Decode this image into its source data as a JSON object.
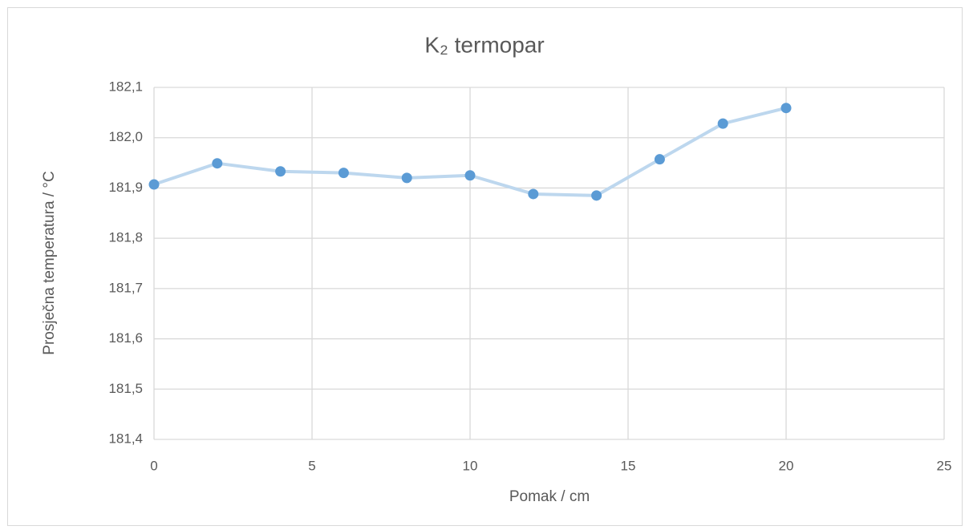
{
  "chart_data": {
    "type": "line",
    "title": "K₂ termopar",
    "x_label": "Pomak / cm",
    "y_label": "Prosječna temperatura / °C",
    "x": [
      0,
      2,
      4,
      6,
      8,
      10,
      12,
      14,
      16,
      18,
      20
    ],
    "series": [
      {
        "color": "#5b9bd5",
        "line_color": "#bdd7ee",
        "values": [
          181.907,
          181.949,
          181.933,
          181.93,
          181.92,
          181.925,
          181.888,
          181.885,
          181.957,
          182.028,
          182.059
        ]
      }
    ],
    "xlim": [
      0,
      25
    ],
    "xticks": [
      0,
      5,
      10,
      15,
      20,
      25
    ],
    "ylim": [
      181.4,
      182.1
    ],
    "yticks": [
      {
        "value": 181.4,
        "label": "181,4"
      },
      {
        "value": 181.5,
        "label": "181,5"
      },
      {
        "value": 181.6,
        "label": "181,6"
      },
      {
        "value": 181.7,
        "label": "181,7"
      },
      {
        "value": 181.8,
        "label": "181,8"
      },
      {
        "value": 181.9,
        "label": "181,9"
      },
      {
        "value": 182.0,
        "label": "182,0"
      },
      {
        "value": 182.1,
        "label": "182,1"
      }
    ],
    "grid": true
  }
}
